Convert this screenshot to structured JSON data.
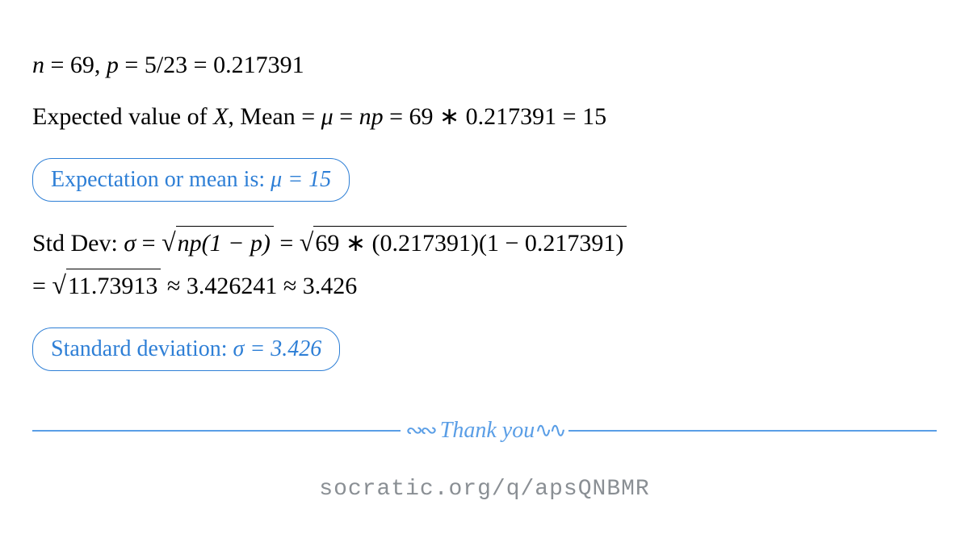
{
  "colors": {
    "text": "#000000",
    "accent": "#2e7fd6",
    "divider": "#5a9ee6",
    "footer": "#8a8f94",
    "background": "#ffffff"
  },
  "typography": {
    "body_fontsize": 30,
    "box_fontsize": 28,
    "footer_fontsize": 28,
    "body_family": "Times New Roman",
    "footer_family": "Courier New"
  },
  "lines": {
    "params_prefix": "n",
    "params_eq1": " = 69, ",
    "params_p": "p",
    "params_eq2": " = 5/23 = 0.217391",
    "expected_prefix": "Expected value of ",
    "expected_X": "X",
    "expected_mid": ", Mean = ",
    "mu": "μ",
    "expected_eqn": " = ",
    "np": "np",
    "expected_result": " = 69 ∗ 0.217391 = 15",
    "box1_text": "Expectation or mean is:  ",
    "box1_val": "μ = 15",
    "std_prefix": "Std Dev: ",
    "sigma": "σ",
    "std_eq": " = ",
    "std_sqrt1": "np(1 − p)",
    "std_mid": " = ",
    "std_sqrt2": "69 ∗ (0.217391)(1 − 0.217391)",
    "std_line2_eq": "= ",
    "std_sqrt3": "11.73913",
    "std_line2_rest": " ≈ 3.426241 ≈ 3.426",
    "box2_text": "Standard deviation:  ",
    "box2_val": "σ = 3.426",
    "thank_you": "Thank you",
    "squiggle_left": "∾∾",
    "squiggle_right": "∿∿",
    "footer": "socratic.org/q/apsQNBMR"
  }
}
